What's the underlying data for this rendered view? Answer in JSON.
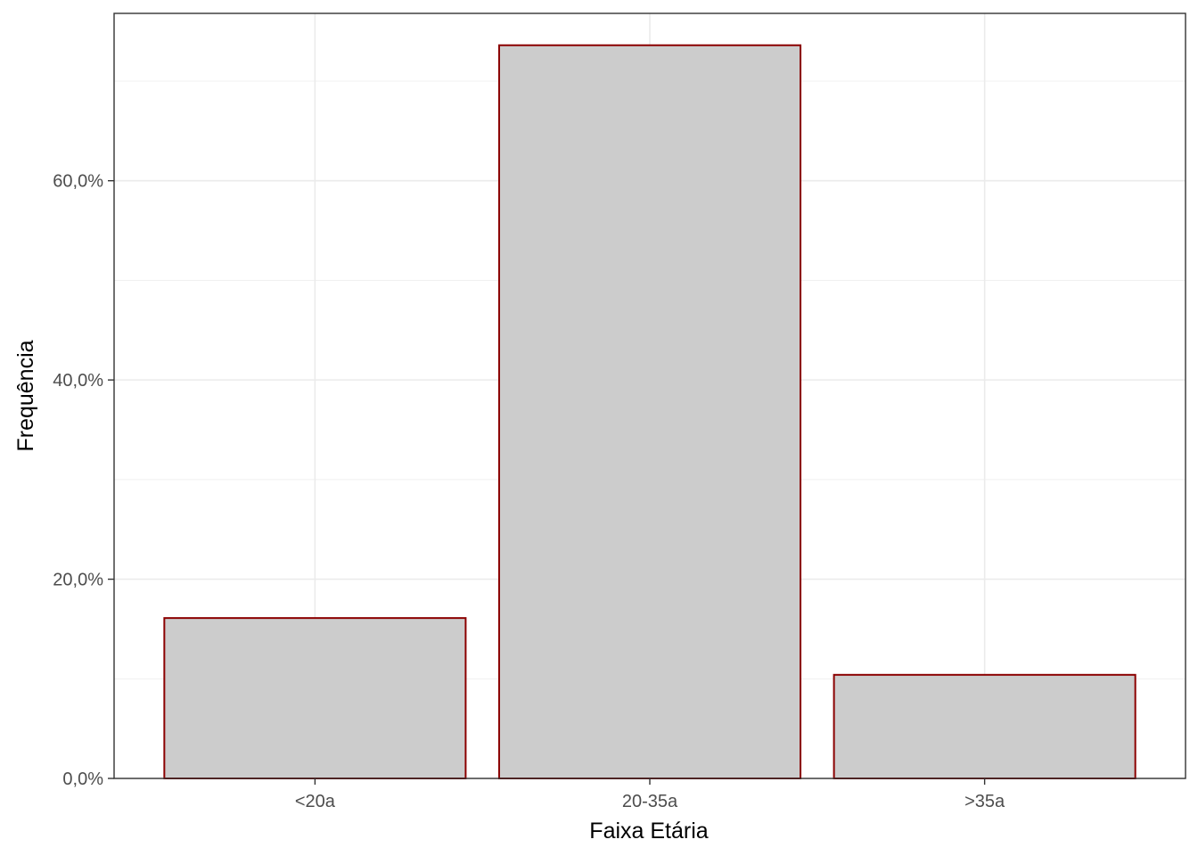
{
  "chart_data": {
    "type": "bar",
    "title": "",
    "xlabel": "Faixa Etária",
    "ylabel": "Frequência",
    "categories": [
      "<20a",
      "20-35a",
      ">35a"
    ],
    "values": [
      16.1,
      73.6,
      10.4
    ],
    "value_unit": "percent",
    "ylim": [
      0,
      76.8
    ],
    "yticks": [
      0,
      20,
      40,
      60
    ],
    "ytick_labels": [
      "0,0%",
      "20,0%",
      "40,0%",
      "60,0%"
    ],
    "grid": true,
    "legend": "none",
    "colors": {
      "bar_fill": "#cccccc",
      "bar_stroke": "#8b0000",
      "panel_border": "#333333",
      "grid": "#ebebeb",
      "tick_text": "#4d4d4d",
      "axis_title_text": "#000000"
    }
  }
}
